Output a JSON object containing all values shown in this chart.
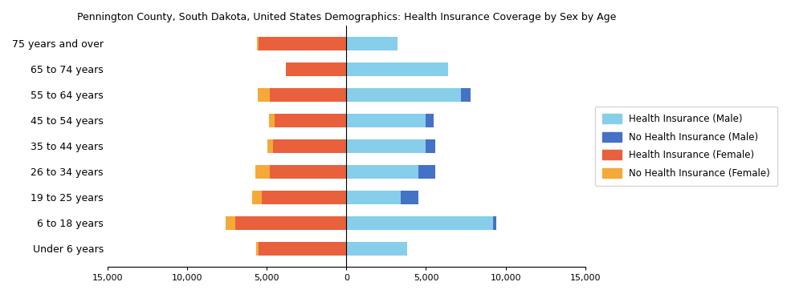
{
  "title": "Pennington County, South Dakota, United States Demographics: Health Insurance Coverage by Sex by Age",
  "age_groups": [
    "Under 6 years",
    "6 to 18 years",
    "19 to 25 years",
    "26 to 34 years",
    "35 to 44 years",
    "45 to 54 years",
    "55 to 64 years",
    "65 to 74 years",
    "75 years and over"
  ],
  "male_insured": [
    3800,
    9200,
    3400,
    4500,
    5000,
    5000,
    7200,
    6400,
    3200
  ],
  "male_uninsured": [
    0,
    200,
    1100,
    1100,
    600,
    500,
    600,
    0,
    0
  ],
  "female_insured": [
    5500,
    7000,
    5300,
    4800,
    4600,
    4500,
    4800,
    3800,
    5500
  ],
  "female_uninsured": [
    150,
    600,
    600,
    900,
    350,
    350,
    750,
    0,
    100
  ],
  "color_male_insured": "#87CEEB",
  "color_male_uninsured": "#4472C4",
  "color_female_insured": "#E8603C",
  "color_female_uninsured": "#F4A939",
  "xlim": 15000,
  "bar_height": 0.55
}
